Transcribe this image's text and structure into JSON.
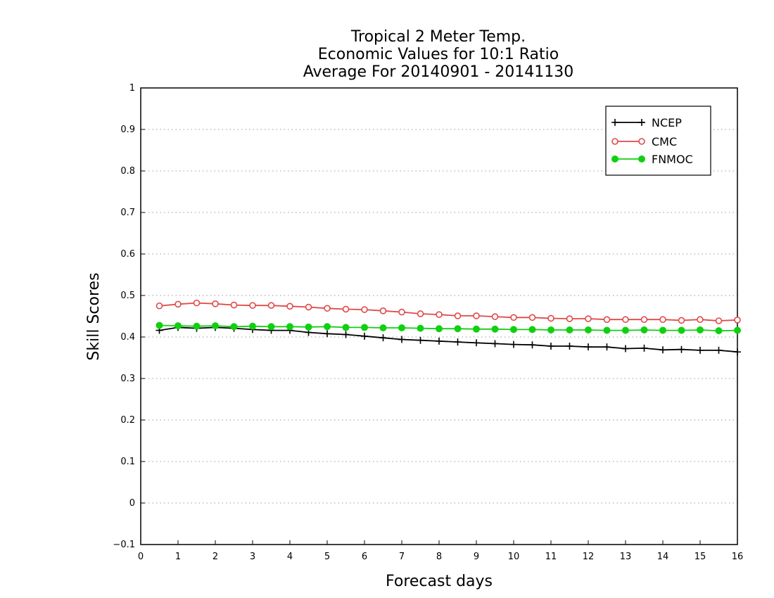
{
  "chart_data": {
    "type": "line",
    "title_lines": [
      "Tropical 2 Meter Temp.",
      "Economic Values for 10:1 Ratio",
      "Average For 20140901 - 20141130"
    ],
    "xlabel": "Forecast days",
    "ylabel": "Skill Scores",
    "xlim": [
      0,
      16
    ],
    "ylim": [
      -0.1,
      1
    ],
    "xticks": [
      0,
      1,
      2,
      3,
      4,
      5,
      6,
      7,
      8,
      9,
      10,
      11,
      12,
      13,
      14,
      15,
      16
    ],
    "yticks": [
      -0.1,
      0,
      0.1,
      0.2,
      0.3,
      0.4,
      0.5,
      0.6,
      0.7,
      0.8,
      0.9,
      1
    ],
    "xtick_labels": [
      "0",
      "1",
      "2",
      "3",
      "4",
      "5",
      "6",
      "7",
      "8",
      "9",
      "10",
      "11",
      "12",
      "13",
      "14",
      "15",
      "16"
    ],
    "ytick_labels": [
      "−0.1",
      "0",
      "0.1",
      "0.2",
      "0.3",
      "0.4",
      "0.5",
      "0.6",
      "0.7",
      "0.8",
      "0.9",
      "1"
    ],
    "grid": "horizontal-dotted",
    "legend_position": "top-right",
    "x": [
      0.5,
      1,
      1.5,
      2,
      2.5,
      3,
      3.5,
      4,
      4.5,
      5,
      5.5,
      6,
      6.5,
      7,
      7.5,
      8,
      8.5,
      9,
      9.5,
      10,
      10.5,
      11,
      11.5,
      12,
      12.5,
      13,
      13.5,
      14,
      14.5,
      15,
      15.5,
      16
    ],
    "series": [
      {
        "name": "NCEP",
        "color": "#000000",
        "marker": "plus",
        "values": [
          0.416,
          0.423,
          0.421,
          0.423,
          0.421,
          0.418,
          0.416,
          0.416,
          0.411,
          0.408,
          0.406,
          0.402,
          0.398,
          0.394,
          0.392,
          0.39,
          0.388,
          0.386,
          0.384,
          0.382,
          0.381,
          0.378,
          0.378,
          0.376,
          0.376,
          0.372,
          0.373,
          0.369,
          0.37,
          0.368,
          0.368,
          0.364
        ]
      },
      {
        "name": "CMC",
        "color": "#e04848",
        "marker": "open-circle",
        "values": [
          0.475,
          0.479,
          0.482,
          0.48,
          0.477,
          0.476,
          0.476,
          0.474,
          0.472,
          0.469,
          0.467,
          0.466,
          0.463,
          0.46,
          0.456,
          0.454,
          0.451,
          0.451,
          0.449,
          0.447,
          0.447,
          0.445,
          0.444,
          0.444,
          0.442,
          0.442,
          0.442,
          0.442,
          0.44,
          0.442,
          0.439,
          0.441
        ]
      },
      {
        "name": "FNMOC",
        "color": "#10d010",
        "marker": "filled-circle",
        "values": [
          0.428,
          0.427,
          0.426,
          0.427,
          0.425,
          0.426,
          0.425,
          0.425,
          0.424,
          0.425,
          0.423,
          0.423,
          0.422,
          0.422,
          0.421,
          0.42,
          0.42,
          0.419,
          0.419,
          0.418,
          0.418,
          0.417,
          0.417,
          0.417,
          0.416,
          0.416,
          0.417,
          0.416,
          0.416,
          0.417,
          0.415,
          0.416
        ]
      }
    ]
  }
}
